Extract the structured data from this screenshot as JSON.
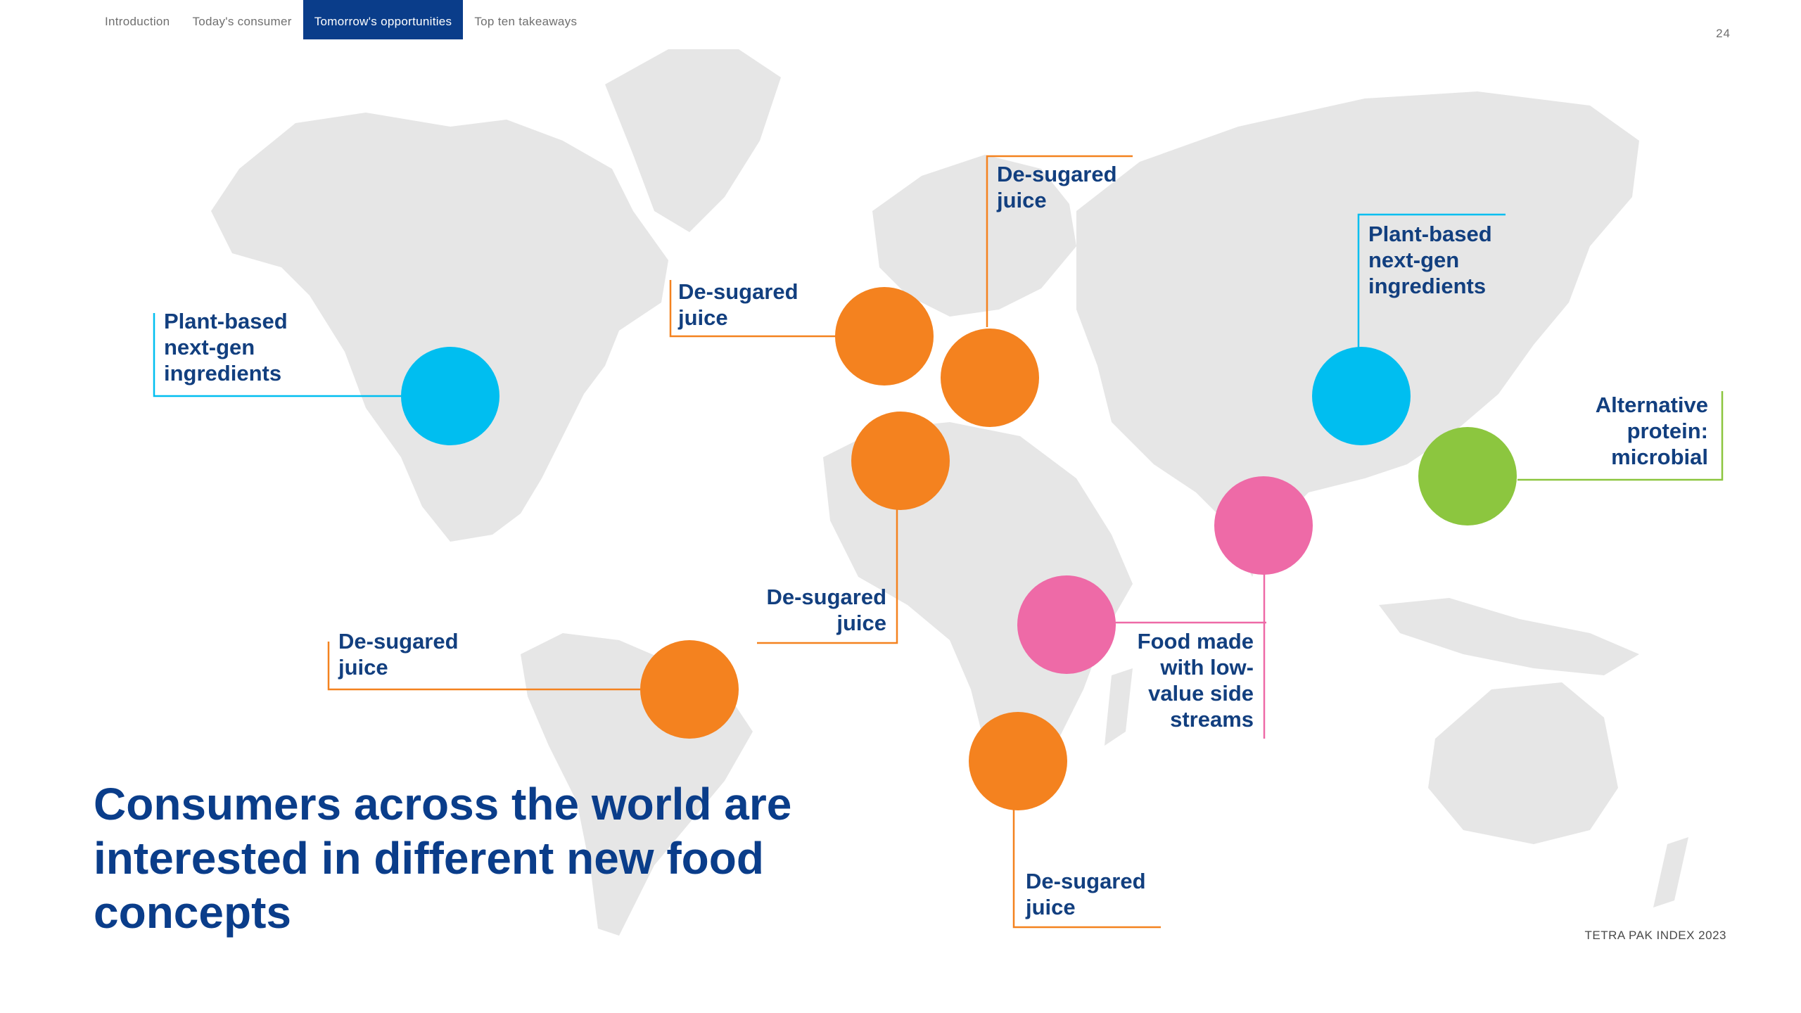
{
  "nav": {
    "tabs": [
      {
        "label": "Introduction",
        "active": false
      },
      {
        "label": "Today's consumer",
        "active": false
      },
      {
        "label": "Tomorrow's opportunities",
        "active": true
      },
      {
        "label": "Top ten takeaways",
        "active": false
      }
    ]
  },
  "page_number": "24",
  "headline": "Consumers across the world are interested in different new food concepts",
  "footer": "TETRA PAK INDEX 2023",
  "colors": {
    "orange": "#f4821f",
    "blue": "#00bef0",
    "pink": "#ee6aa7",
    "green": "#8cc63f",
    "navy": "#0a3d8a",
    "map_gray": "#e6e6e6"
  },
  "map": {
    "callouts": [
      {
        "region": "north-america",
        "label": "Plant-based next-gen ingredients",
        "color": "blue"
      },
      {
        "region": "uk",
        "label": "De-sugared juice",
        "color": "orange"
      },
      {
        "region": "northern-europe",
        "label": "De-sugared juice",
        "color": "orange"
      },
      {
        "region": "western-europe",
        "label": "De-sugared juice",
        "color": "orange"
      },
      {
        "region": "brazil",
        "label": "De-sugared juice",
        "color": "orange"
      },
      {
        "region": "east-africa",
        "label": "Food made with low-value side streams",
        "color": "pink"
      },
      {
        "region": "south-asia",
        "label": "Food made with low-value side streams",
        "color": "pink"
      },
      {
        "region": "southern-africa",
        "label": "De-sugared juice",
        "color": "orange"
      },
      {
        "region": "china",
        "label": "Plant-based next-gen ingredients",
        "color": "blue"
      },
      {
        "region": "east-asia",
        "label": "Alternative protein: microbial",
        "color": "green"
      }
    ]
  }
}
